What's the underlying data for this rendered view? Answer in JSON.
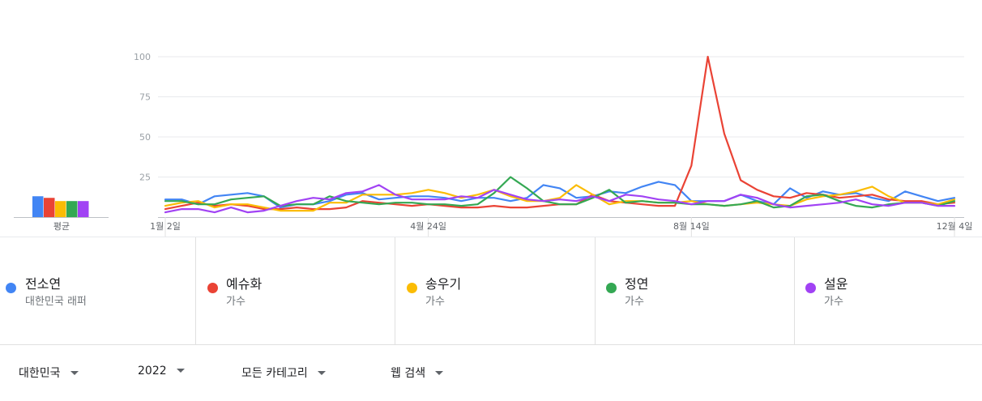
{
  "chart_data": {
    "type": "line",
    "x": [
      "1월 2일",
      "1월 9일",
      "1월 16일",
      "1월 23일",
      "1월 30일",
      "2월 6일",
      "2월 13일",
      "2월 20일",
      "2월 27일",
      "3월 6일",
      "3월 13일",
      "3월 20일",
      "3월 27일",
      "4월 3일",
      "4월 10일",
      "4월 17일",
      "4월 24일",
      "5월 1일",
      "5월 8일",
      "5월 15일",
      "5월 22일",
      "5월 29일",
      "6월 5일",
      "6월 12일",
      "6월 19일",
      "6월 26일",
      "7월 3일",
      "7월 10일",
      "7월 17일",
      "7월 24일",
      "7월 31일",
      "8월 7일",
      "8월 14일",
      "8월 21일",
      "8월 28일",
      "9월 4일",
      "9월 11일",
      "9월 18일",
      "9월 25일",
      "10월 2일",
      "10월 9일",
      "10월 16일",
      "10월 23일",
      "10월 30일",
      "11월 6일",
      "11월 13일",
      "11월 20일",
      "11월 27일",
      "12월 4일"
    ],
    "xticks": [
      "1월 2일",
      "4월 24일",
      "8월 14일",
      "12월 4일"
    ],
    "yticks": [
      25,
      50,
      75,
      100
    ],
    "ylim": [
      0,
      100
    ],
    "grid": true,
    "series": [
      {
        "name": "전소연",
        "color": "#4285f4",
        "values": [
          11,
          11,
          8,
          13,
          14,
          15,
          13,
          6,
          8,
          8,
          10,
          14,
          15,
          11,
          12,
          13,
          13,
          12,
          10,
          12,
          12,
          10,
          12,
          20,
          18,
          12,
          13,
          16,
          15,
          19,
          22,
          20,
          10,
          10,
          10,
          14,
          10,
          8,
          18,
          12,
          16,
          14,
          15,
          12,
          10,
          16,
          13,
          10,
          12
        ]
      },
      {
        "name": "예슈화",
        "color": "#ea4335",
        "values": [
          5,
          7,
          9,
          7,
          8,
          7,
          5,
          5,
          6,
          5,
          5,
          6,
          10,
          9,
          8,
          7,
          8,
          7,
          6,
          6,
          7,
          6,
          6,
          7,
          8,
          8,
          14,
          10,
          9,
          8,
          7,
          7,
          32,
          100,
          52,
          23,
          17,
          13,
          12,
          15,
          14,
          12,
          13,
          14,
          11,
          10,
          10,
          8,
          9
        ]
      },
      {
        "name": "송우기",
        "color": "#fbbc04",
        "values": [
          7,
          9,
          10,
          6,
          8,
          8,
          6,
          4,
          4,
          4,
          9,
          9,
          14,
          14,
          14,
          15,
          17,
          15,
          12,
          14,
          17,
          13,
          10,
          10,
          12,
          20,
          14,
          8,
          10,
          10,
          9,
          9,
          10,
          8,
          7,
          8,
          9,
          8,
          7,
          11,
          13,
          14,
          16,
          19,
          13,
          9,
          9,
          8,
          11
        ]
      },
      {
        "name": "정연",
        "color": "#34a853",
        "values": [
          10,
          10,
          8,
          8,
          11,
          12,
          13,
          7,
          8,
          8,
          13,
          10,
          9,
          8,
          9,
          9,
          8,
          8,
          7,
          8,
          15,
          25,
          18,
          10,
          8,
          8,
          12,
          17,
          9,
          10,
          9,
          9,
          8,
          8,
          7,
          8,
          10,
          6,
          7,
          13,
          14,
          10,
          7,
          6,
          8,
          9,
          9,
          7,
          10
        ]
      },
      {
        "name": "설윤",
        "color": "#a142f4",
        "values": [
          3,
          5,
          5,
          3,
          6,
          3,
          4,
          7,
          10,
          12,
          11,
          15,
          16,
          20,
          14,
          11,
          11,
          11,
          13,
          12,
          17,
          14,
          11,
          10,
          11,
          10,
          13,
          10,
          14,
          13,
          11,
          10,
          8,
          10,
          10,
          14,
          12,
          8,
          6,
          7,
          8,
          9,
          11,
          8,
          7,
          9,
          9,
          7,
          7
        ]
      }
    ]
  },
  "average": {
    "label": "평균",
    "values": [
      {
        "series": "전소연",
        "value": 13,
        "color": "#4285f4"
      },
      {
        "series": "예슈화",
        "value": 12,
        "color": "#ea4335"
      },
      {
        "series": "송우기",
        "value": 10,
        "color": "#fbbc04"
      },
      {
        "series": "정연",
        "value": 10,
        "color": "#34a853"
      },
      {
        "series": "설윤",
        "value": 10,
        "color": "#a142f4"
      }
    ]
  },
  "legend": [
    {
      "name": "전소연",
      "sub": "대한민국 래퍼",
      "color": "#4285f4"
    },
    {
      "name": "예슈화",
      "sub": "가수",
      "color": "#ea4335"
    },
    {
      "name": "송우기",
      "sub": "가수",
      "color": "#fbbc04"
    },
    {
      "name": "정연",
      "sub": "가수",
      "color": "#34a853"
    },
    {
      "name": "설윤",
      "sub": "가수",
      "color": "#a142f4"
    }
  ],
  "filters": {
    "region": "대한민국",
    "year": "2022",
    "category": "모든 카테고리",
    "search_type": "웹 검색"
  }
}
